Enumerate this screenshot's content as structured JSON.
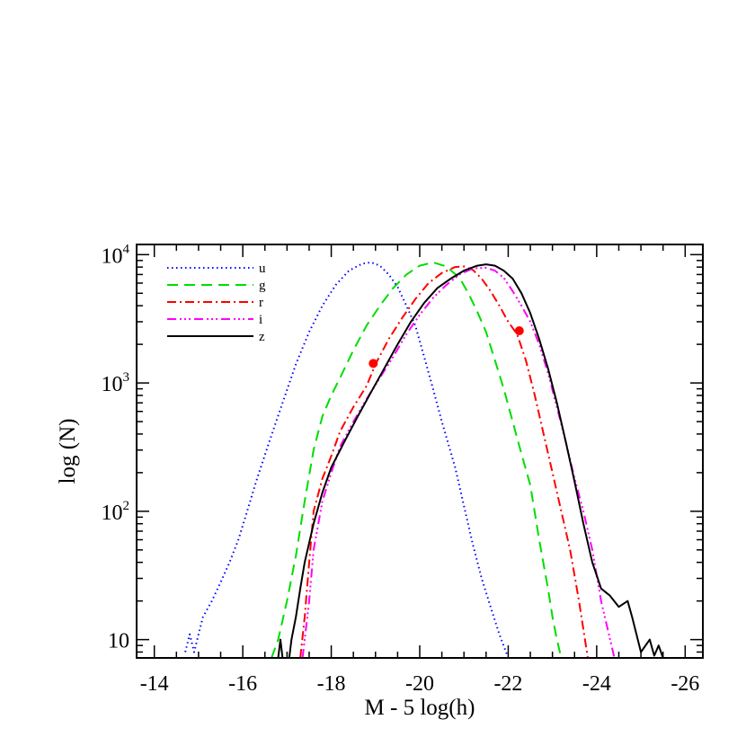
{
  "chart_data": {
    "type": "line",
    "title": "",
    "xlabel": "M - 5 log(h)",
    "ylabel": "log (N)",
    "xlim": [
      -13.6,
      -26.4
    ],
    "ylim": [
      7.2,
      12000
    ],
    "yscale": "log",
    "x_ticks": [
      {
        "value": -14,
        "label": "-14"
      },
      {
        "value": -16,
        "label": "-16"
      },
      {
        "value": -18,
        "label": "-18"
      },
      {
        "value": -20,
        "label": "-20"
      },
      {
        "value": -22,
        "label": "-22"
      },
      {
        "value": -24,
        "label": "-24"
      },
      {
        "value": -26,
        "label": "-26"
      }
    ],
    "y_ticks": [
      {
        "value": 10,
        "base": "10",
        "exp": ""
      },
      {
        "value": 100,
        "base": "10",
        "exp": "2"
      },
      {
        "value": 1000,
        "base": "10",
        "exp": "3"
      },
      {
        "value": 10000,
        "base": "10",
        "exp": "4"
      }
    ],
    "grid": false,
    "legend_position": "top-left",
    "series": [
      {
        "name": "u",
        "color": "#0000ff",
        "dash": "1.5,3.5",
        "x": [
          -14.7,
          -14.8,
          -14.9,
          -15.0,
          -15.1,
          -15.3,
          -15.5,
          -15.7,
          -15.9,
          -16.1,
          -16.3,
          -16.6,
          -16.9,
          -17.2,
          -17.5,
          -17.8,
          -18.1,
          -18.4,
          -18.7,
          -18.9,
          -19.1,
          -19.3,
          -19.5,
          -19.7,
          -19.9,
          -20.1,
          -20.3,
          -20.5,
          -20.8,
          -21.0,
          -21.2,
          -21.4,
          -21.6,
          -21.8,
          -21.95,
          -22.0
        ],
        "y": [
          8,
          11,
          8,
          11,
          15,
          20,
          28,
          40,
          60,
          100,
          170,
          350,
          700,
          1400,
          2500,
          4000,
          5800,
          7500,
          8500,
          8700,
          8200,
          7000,
          5600,
          4000,
          2800,
          1600,
          900,
          500,
          220,
          110,
          55,
          30,
          18,
          11,
          8,
          7.2
        ]
      },
      {
        "name": "g",
        "color": "#00dd00",
        "dash": "12,7",
        "x": [
          -16.65,
          -16.8,
          -17.0,
          -17.2,
          -17.4,
          -17.6,
          -17.8,
          -18.0,
          -18.2,
          -18.5,
          -18.8,
          -19.1,
          -19.4,
          -19.7,
          -20.0,
          -20.3,
          -20.6,
          -20.9,
          -21.1,
          -21.3,
          -21.5,
          -21.7,
          -21.9,
          -22.1,
          -22.3,
          -22.5,
          -22.7,
          -22.9,
          -23.0,
          -23.1,
          -23.2
        ],
        "y": [
          7.2,
          10,
          20,
          45,
          120,
          300,
          550,
          800,
          1100,
          1800,
          2800,
          4000,
          5500,
          7000,
          8200,
          8700,
          8100,
          6600,
          5000,
          3600,
          2500,
          1500,
          900,
          500,
          280,
          160,
          60,
          25,
          15,
          10,
          7.2
        ]
      },
      {
        "name": "r",
        "color": "#ff0000",
        "dash": "10,4,2,4",
        "x": [
          -17.3,
          -17.4,
          -17.5,
          -17.6,
          -17.8,
          -18.0,
          -18.2,
          -18.5,
          -18.8,
          -19.0,
          -19.3,
          -19.6,
          -19.9,
          -20.2,
          -20.5,
          -20.8,
          -21.0,
          -21.2,
          -21.4,
          -21.6,
          -21.8,
          -22.0,
          -22.2,
          -22.4,
          -22.6,
          -22.8,
          -23.0,
          -23.2,
          -23.4,
          -23.6,
          -23.8
        ],
        "y": [
          7.2,
          15,
          40,
          100,
          180,
          270,
          420,
          650,
          950,
          1400,
          2200,
          3200,
          4500,
          6000,
          7200,
          8000,
          8100,
          7600,
          6500,
          5200,
          4000,
          3000,
          2400,
          1500,
          800,
          400,
          200,
          100,
          50,
          20,
          7.2
        ]
      },
      {
        "name": "i",
        "color": "#ff00ff",
        "dash": "10,4,2,3,2,3,2,4",
        "x": [
          -17.35,
          -17.5,
          -17.6,
          -17.8,
          -18.0,
          -18.2,
          -18.5,
          -18.8,
          -19.1,
          -19.4,
          -19.7,
          -20.0,
          -20.3,
          -20.6,
          -20.9,
          -21.2,
          -21.5,
          -21.7,
          -21.9,
          -22.1,
          -22.3,
          -22.5,
          -22.7,
          -22.9,
          -23.1,
          -23.3,
          -23.5,
          -23.7,
          -23.9,
          -24.1,
          -24.4
        ],
        "y": [
          7.2,
          20,
          50,
          120,
          200,
          320,
          500,
          750,
          1100,
          1600,
          2400,
          3400,
          4600,
          5800,
          7000,
          7800,
          7900,
          7500,
          6600,
          5200,
          4000,
          3000,
          2000,
          1200,
          650,
          350,
          180,
          100,
          50,
          20,
          7.2
        ]
      },
      {
        "name": "z",
        "color": "#000000",
        "dash": "",
        "x": [
          -16.8,
          -16.85,
          -16.9,
          -17.05,
          -17.1,
          -17.2,
          -17.3,
          -17.4,
          -17.6,
          -17.8,
          -18.0,
          -18.3,
          -18.6,
          -18.9,
          -19.2,
          -19.5,
          -19.8,
          -20.1,
          -20.4,
          -20.7,
          -21.0,
          -21.3,
          -21.5,
          -21.7,
          -21.9,
          -22.1,
          -22.3,
          -22.5,
          -22.7,
          -22.9,
          -23.1,
          -23.3,
          -23.5,
          -23.7,
          -23.9,
          -24.1,
          -24.3,
          -24.5,
          -24.7,
          -24.8,
          -25.0,
          -25.2,
          -25.3,
          -25.4,
          -25.5
        ],
        "y": [
          7.2,
          10,
          7.2,
          7.2,
          10,
          15,
          25,
          40,
          80,
          140,
          220,
          350,
          550,
          850,
          1300,
          2000,
          3000,
          4200,
          5500,
          6500,
          7500,
          8200,
          8400,
          8200,
          7500,
          6500,
          5000,
          3500,
          2200,
          1300,
          700,
          350,
          170,
          80,
          40,
          25,
          22,
          18,
          20,
          15,
          8,
          10,
          7.5,
          9,
          7.2
        ]
      }
    ],
    "markers": [
      {
        "x": -18.95,
        "y": 1420,
        "color": "#ff0000"
      },
      {
        "x": -22.25,
        "y": 2550,
        "color": "#ff0000"
      }
    ]
  }
}
